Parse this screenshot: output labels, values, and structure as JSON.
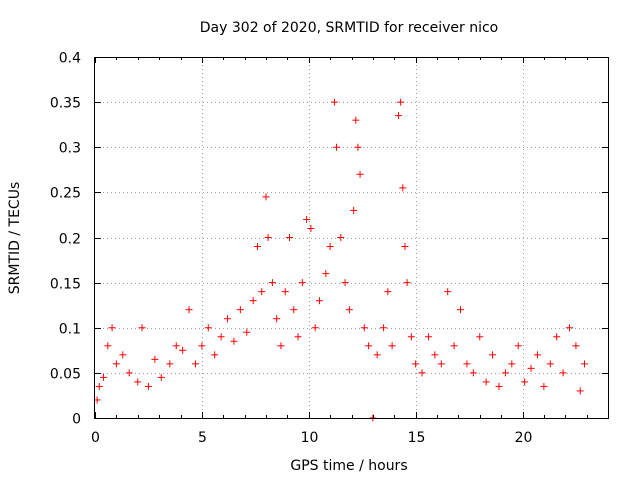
{
  "chart_data": {
    "type": "scatter",
    "title": "Day 302 of 2020, SRMTID for receiver nico",
    "xlabel": "GPS time / hours",
    "ylabel": "SRMTID / TECUs",
    "xlim": [
      0,
      24
    ],
    "ylim": [
      0,
      0.4
    ],
    "xticks": [
      0,
      5,
      10,
      15,
      20
    ],
    "xtick_labels": [
      "0",
      "5",
      "10",
      "15",
      "20"
    ],
    "yticks": [
      0,
      0.05,
      0.1,
      0.15,
      0.2,
      0.25,
      0.3,
      0.35,
      0.4
    ],
    "ytick_labels": [
      "0",
      "0.05",
      "0.1",
      "0.15",
      "0.2",
      "0.25",
      "0.3",
      "0.35",
      "0.4"
    ],
    "grid": true,
    "marker": "+",
    "color": "#ff0000",
    "x_range_of_data": [
      0,
      22.9
    ],
    "series": [
      {
        "name": "SRMTID",
        "points": [
          [
            0.1,
            0.02
          ],
          [
            0.2,
            0.035
          ],
          [
            0.4,
            0.045
          ],
          [
            0.6,
            0.08
          ],
          [
            0.8,
            0.1
          ],
          [
            1.0,
            0.06
          ],
          [
            1.3,
            0.07
          ],
          [
            1.6,
            0.05
          ],
          [
            2.0,
            0.04
          ],
          [
            2.2,
            0.1
          ],
          [
            2.5,
            0.035
          ],
          [
            2.8,
            0.065
          ],
          [
            3.1,
            0.045
          ],
          [
            3.5,
            0.06
          ],
          [
            3.8,
            0.08
          ],
          [
            4.1,
            0.075
          ],
          [
            4.4,
            0.12
          ],
          [
            4.7,
            0.06
          ],
          [
            5.0,
            0.08
          ],
          [
            5.3,
            0.1
          ],
          [
            5.6,
            0.07
          ],
          [
            5.9,
            0.09
          ],
          [
            6.2,
            0.11
          ],
          [
            6.5,
            0.085
          ],
          [
            6.8,
            0.12
          ],
          [
            7.1,
            0.095
          ],
          [
            7.4,
            0.13
          ],
          [
            7.6,
            0.19
          ],
          [
            7.8,
            0.14
          ],
          [
            8.0,
            0.245
          ],
          [
            8.1,
            0.2
          ],
          [
            8.3,
            0.15
          ],
          [
            8.5,
            0.11
          ],
          [
            8.7,
            0.08
          ],
          [
            8.9,
            0.14
          ],
          [
            9.1,
            0.2
          ],
          [
            9.3,
            0.12
          ],
          [
            9.5,
            0.09
          ],
          [
            9.7,
            0.15
          ],
          [
            9.9,
            0.22
          ],
          [
            10.1,
            0.21
          ],
          [
            10.3,
            0.1
          ],
          [
            10.5,
            0.13
          ],
          [
            10.8,
            0.16
          ],
          [
            11.0,
            0.19
          ],
          [
            11.2,
            0.35
          ],
          [
            11.3,
            0.3
          ],
          [
            11.5,
            0.2
          ],
          [
            11.7,
            0.15
          ],
          [
            11.9,
            0.12
          ],
          [
            12.1,
            0.23
          ],
          [
            12.2,
            0.33
          ],
          [
            12.3,
            0.3
          ],
          [
            12.4,
            0.27
          ],
          [
            12.6,
            0.1
          ],
          [
            12.8,
            0.08
          ],
          [
            13.0,
            0.0
          ],
          [
            13.2,
            0.07
          ],
          [
            13.5,
            0.1
          ],
          [
            13.7,
            0.14
          ],
          [
            13.9,
            0.08
          ],
          [
            14.2,
            0.335
          ],
          [
            14.3,
            0.35
          ],
          [
            14.4,
            0.255
          ],
          [
            14.5,
            0.19
          ],
          [
            14.6,
            0.15
          ],
          [
            14.8,
            0.09
          ],
          [
            15.0,
            0.06
          ],
          [
            15.3,
            0.05
          ],
          [
            15.6,
            0.09
          ],
          [
            15.9,
            0.07
          ],
          [
            16.2,
            0.06
          ],
          [
            16.5,
            0.14
          ],
          [
            16.8,
            0.08
          ],
          [
            17.1,
            0.12
          ],
          [
            17.4,
            0.06
          ],
          [
            17.7,
            0.05
          ],
          [
            18.0,
            0.09
          ],
          [
            18.3,
            0.04
          ],
          [
            18.6,
            0.07
          ],
          [
            18.9,
            0.035
          ],
          [
            19.2,
            0.05
          ],
          [
            19.5,
            0.06
          ],
          [
            19.8,
            0.08
          ],
          [
            20.1,
            0.04
          ],
          [
            20.4,
            0.055
          ],
          [
            20.7,
            0.07
          ],
          [
            21.0,
            0.035
          ],
          [
            21.3,
            0.06
          ],
          [
            21.6,
            0.09
          ],
          [
            21.9,
            0.05
          ],
          [
            22.2,
            0.1
          ],
          [
            22.5,
            0.08
          ],
          [
            22.7,
            0.03
          ],
          [
            22.9,
            0.06
          ]
        ]
      }
    ]
  }
}
